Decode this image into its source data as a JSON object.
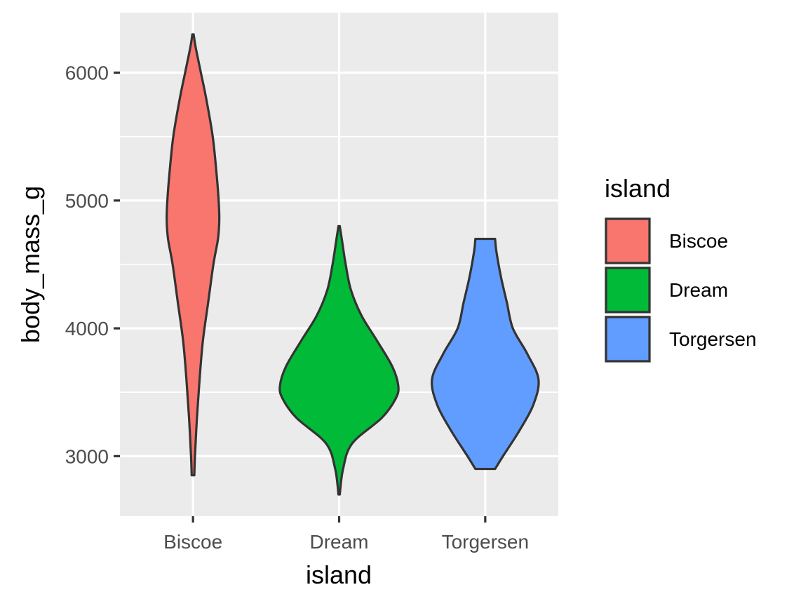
{
  "chart_data": {
    "type": "violin",
    "xlabel": "island",
    "ylabel": "body_mass_g",
    "categories": [
      "Biscoe",
      "Dream",
      "Torgersen"
    ],
    "ylim": [
      2530,
      6470
    ],
    "y_ticks": [
      3000,
      4000,
      5000,
      6000
    ],
    "grid": true,
    "legend": {
      "title": "island",
      "position": "right"
    },
    "series": [
      {
        "name": "Biscoe",
        "color": "#F8766D",
        "min": 2850,
        "max": 6300,
        "profile": [
          [
            2850,
            0.02
          ],
          [
            3000,
            0.03
          ],
          [
            3300,
            0.06
          ],
          [
            3600,
            0.1
          ],
          [
            3900,
            0.15
          ],
          [
            4200,
            0.23
          ],
          [
            4500,
            0.31
          ],
          [
            4700,
            0.38
          ],
          [
            4850,
            0.4
          ],
          [
            5000,
            0.39
          ],
          [
            5200,
            0.36
          ],
          [
            5500,
            0.3
          ],
          [
            5800,
            0.2
          ],
          [
            6000,
            0.12
          ],
          [
            6200,
            0.04
          ],
          [
            6300,
            0.01
          ]
        ]
      },
      {
        "name": "Dream",
        "color": "#00BA38",
        "min": 2700,
        "max": 4800,
        "profile": [
          [
            2700,
            0.01
          ],
          [
            2900,
            0.06
          ],
          [
            3100,
            0.2
          ],
          [
            3300,
            0.65
          ],
          [
            3450,
            0.86
          ],
          [
            3550,
            0.9
          ],
          [
            3700,
            0.81
          ],
          [
            3900,
            0.58
          ],
          [
            4100,
            0.34
          ],
          [
            4300,
            0.18
          ],
          [
            4500,
            0.1
          ],
          [
            4700,
            0.04
          ],
          [
            4800,
            0.01
          ]
        ]
      },
      {
        "name": "Torgersen",
        "color": "#619CFF",
        "min": 2900,
        "max": 4700,
        "profile": [
          [
            2900,
            0.15
          ],
          [
            3000,
            0.27
          ],
          [
            3200,
            0.52
          ],
          [
            3400,
            0.73
          ],
          [
            3600,
            0.81
          ],
          [
            3800,
            0.64
          ],
          [
            4000,
            0.42
          ],
          [
            4200,
            0.33
          ],
          [
            4400,
            0.24
          ],
          [
            4600,
            0.17
          ],
          [
            4700,
            0.15
          ]
        ]
      }
    ]
  }
}
